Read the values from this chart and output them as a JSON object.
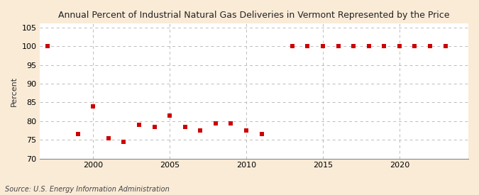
{
  "title": "Annual Percent of Industrial Natural Gas Deliveries in Vermont Represented by the Price",
  "ylabel": "Percent",
  "source": "Source: U.S. Energy Information Administration",
  "background_color": "#faebd7",
  "plot_background_color": "#ffffff",
  "marker_color": "#cc0000",
  "marker_size": 4,
  "years": [
    1997,
    1999,
    2000,
    2001,
    2002,
    2003,
    2004,
    2005,
    2006,
    2007,
    2008,
    2009,
    2010,
    2011,
    2013,
    2014,
    2015,
    2016,
    2017,
    2018,
    2019,
    2020,
    2021,
    2022,
    2023
  ],
  "values": [
    100.0,
    76.5,
    84.0,
    75.5,
    74.5,
    79.0,
    78.5,
    81.5,
    78.5,
    77.5,
    79.5,
    79.5,
    77.5,
    76.5,
    100.0,
    100.0,
    100.0,
    100.0,
    100.0,
    100.0,
    100.0,
    100.0,
    100.0,
    100.0,
    100.0
  ],
  "ylim": [
    70,
    106
  ],
  "yticks": [
    70,
    75,
    80,
    85,
    90,
    95,
    100,
    105
  ],
  "xlim": [
    1996.5,
    2024.5
  ],
  "xticks": [
    2000,
    2005,
    2010,
    2015,
    2020
  ]
}
